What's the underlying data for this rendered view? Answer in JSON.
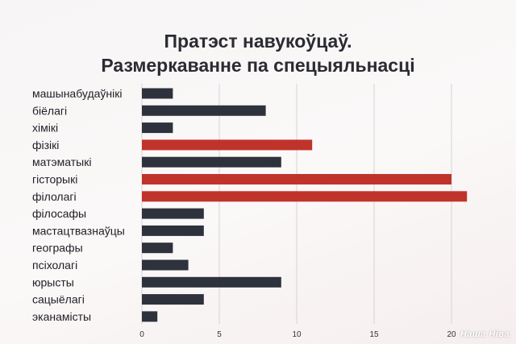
{
  "chart_data": {
    "type": "bar",
    "orientation": "horizontal",
    "title_lines": [
      "Пратэст навукоўцаў.",
      "Размеркаванне па спецыяльнасці"
    ],
    "categories": [
      "машынабудаўнікі",
      "біёлагі",
      "хімікі",
      "фізікі",
      "матэматыкі",
      "гісторыкі",
      "філолагі",
      "філосафы",
      "мастацтвазнаўцы",
      "географы",
      "псіхолагі",
      "юрысты",
      "сацыёлагі",
      "эканамісты"
    ],
    "values": [
      2,
      8,
      2,
      11,
      9,
      20,
      21,
      4,
      4,
      2,
      3,
      9,
      4,
      1
    ],
    "highlighted": [
      false,
      false,
      false,
      true,
      false,
      true,
      true,
      false,
      false,
      false,
      false,
      false,
      false,
      false
    ],
    "xticks": [
      0,
      5,
      10,
      15,
      20
    ],
    "xlim": [
      0,
      21
    ],
    "grid": true,
    "colors": {
      "default": "#2e323c",
      "highlight": "#c0332b",
      "grid": "#d6d3d3"
    }
  },
  "watermark": "Наша Ніва"
}
